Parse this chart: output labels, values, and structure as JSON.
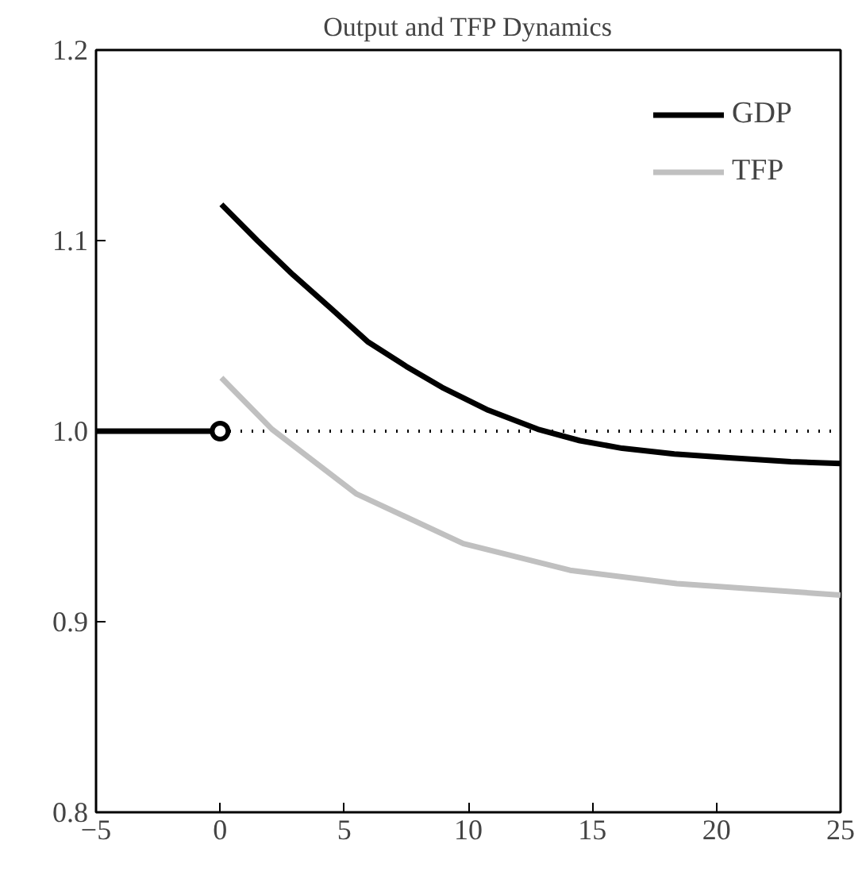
{
  "chart_data": {
    "type": "line",
    "title": "Output and TFP Dynamics",
    "xlim": [
      -5,
      25
    ],
    "xticks": [
      {
        "value": -5,
        "label": "−5"
      },
      0,
      5,
      10,
      15,
      20,
      25
    ],
    "ylim": [
      0.8,
      1.2
    ],
    "yticks": [
      0.8,
      0.9,
      {
        "value": 1.0,
        "label": "1.0"
      },
      1.1,
      1.2
    ],
    "grid": false,
    "legend": "top right",
    "line_style": "solid",
    "ref_lines": [
      {
        "axis": "y",
        "value": 1.0,
        "line_style": "dotted",
        "color": "#000000"
      }
    ],
    "series": [
      {
        "color": "#000000",
        "x": [
          -5,
          0
        ],
        "values": [
          1.0,
          1.0
        ]
      },
      {
        "name": "GDP",
        "color": "#000000",
        "x": [
          0.05,
          1.5,
          2.94,
          4.5,
          5.94,
          7.5,
          8.94,
          10.8,
          12.8,
          14.5,
          16.2,
          18.3,
          20.5,
          23,
          25
        ],
        "values": [
          1.119,
          1.1,
          1.082,
          1.064,
          1.047,
          1.034,
          1.023,
          1.011,
          1.001,
          0.995,
          0.991,
          0.988,
          0.986,
          0.984,
          0.983
        ]
      },
      {
        "name": "TFP",
        "color": "#c0c0c0",
        "x": [
          0.05,
          2.09,
          5.5,
          9.8,
          14.1,
          18.4,
          25
        ],
        "values": [
          1.028,
          1.001,
          0.967,
          0.941,
          0.927,
          0.92,
          0.914
        ]
      },
      {
        "type": "scatter",
        "marker": "circle",
        "color": "#000000",
        "x": [
          0
        ],
        "values": [
          1.0
        ]
      }
    ]
  }
}
